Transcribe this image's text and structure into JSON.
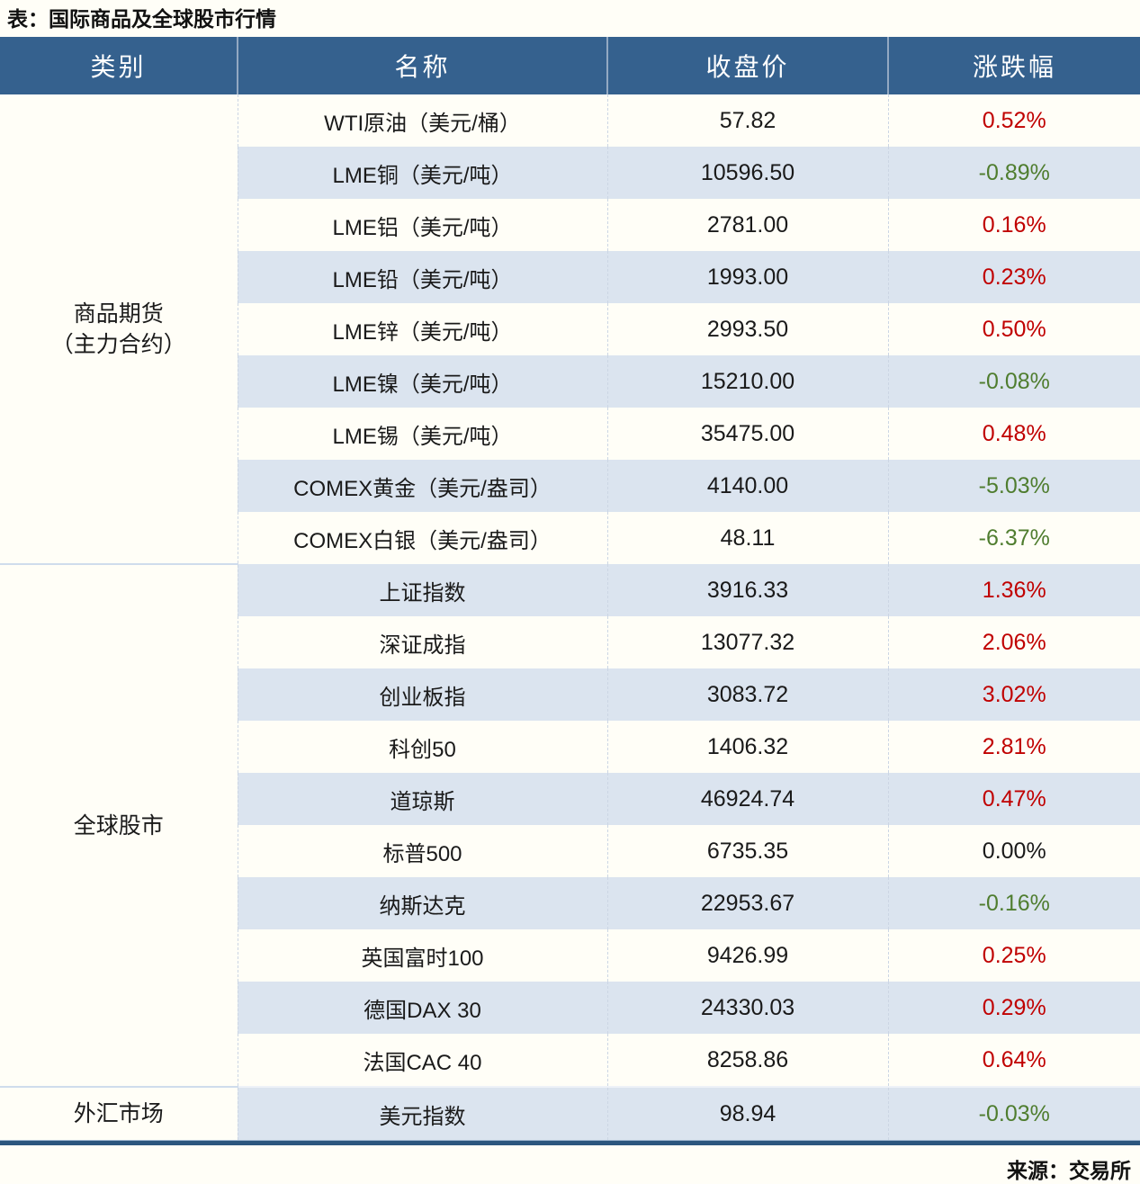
{
  "title": "表：国际商品及全球股市行情",
  "source_label": "来源：交易所",
  "colors": {
    "header_bg": "#35618e",
    "header_text": "#ffffff",
    "stripe_row_bg": "#dbe4ef",
    "positive_change": "#c00000",
    "negative_change": "#4f7d2f",
    "flat_change": "#1a1a1a"
  },
  "chart_data": {
    "type": "table",
    "title": "表：国际商品及全球股市行情",
    "columns": [
      "类别",
      "名称",
      "收盘价",
      "涨跌幅"
    ],
    "groups": [
      {
        "category_lines": [
          "商品期货",
          "（主力合约）"
        ],
        "rows": [
          {
            "name": "WTI原油（美元/桶）",
            "close": "57.82",
            "change": "0.52%",
            "direction": "up"
          },
          {
            "name": "LME铜（美元/吨）",
            "close": "10596.50",
            "change": "-0.89%",
            "direction": "down"
          },
          {
            "name": "LME铝（美元/吨）",
            "close": "2781.00",
            "change": "0.16%",
            "direction": "up"
          },
          {
            "name": "LME铅（美元/吨）",
            "close": "1993.00",
            "change": "0.23%",
            "direction": "up"
          },
          {
            "name": "LME锌（美元/吨）",
            "close": "2993.50",
            "change": "0.50%",
            "direction": "up"
          },
          {
            "name": "LME镍（美元/吨）",
            "close": "15210.00",
            "change": "-0.08%",
            "direction": "down"
          },
          {
            "name": "LME锡（美元/吨）",
            "close": "35475.00",
            "change": "0.48%",
            "direction": "up"
          },
          {
            "name": "COMEX黄金（美元/盎司）",
            "close": "4140.00",
            "change": "-5.03%",
            "direction": "down"
          },
          {
            "name": "COMEX白银（美元/盎司）",
            "close": "48.11",
            "change": "-6.37%",
            "direction": "down"
          }
        ]
      },
      {
        "category_lines": [
          "全球股市"
        ],
        "rows": [
          {
            "name": "上证指数",
            "close": "3916.33",
            "change": "1.36%",
            "direction": "up"
          },
          {
            "name": "深证成指",
            "close": "13077.32",
            "change": "2.06%",
            "direction": "up"
          },
          {
            "name": "创业板指",
            "close": "3083.72",
            "change": "3.02%",
            "direction": "up"
          },
          {
            "name": "科创50",
            "close": "1406.32",
            "change": "2.81%",
            "direction": "up"
          },
          {
            "name": "道琼斯",
            "close": "46924.74",
            "change": "0.47%",
            "direction": "up"
          },
          {
            "name": "标普500",
            "close": "6735.35",
            "change": "0.00%",
            "direction": "flat"
          },
          {
            "name": "纳斯达克",
            "close": "22953.67",
            "change": "-0.16%",
            "direction": "down"
          },
          {
            "name": "英国富时100",
            "close": "9426.99",
            "change": "0.25%",
            "direction": "up"
          },
          {
            "name": "德国DAX 30",
            "close": "24330.03",
            "change": "0.29%",
            "direction": "up"
          },
          {
            "name": "法国CAC 40",
            "close": "8258.86",
            "change": "0.64%",
            "direction": "up"
          }
        ]
      },
      {
        "category_lines": [
          "外汇市场"
        ],
        "rows": [
          {
            "name": "美元指数",
            "close": "98.94",
            "change": "-0.03%",
            "direction": "down"
          }
        ]
      }
    ]
  }
}
